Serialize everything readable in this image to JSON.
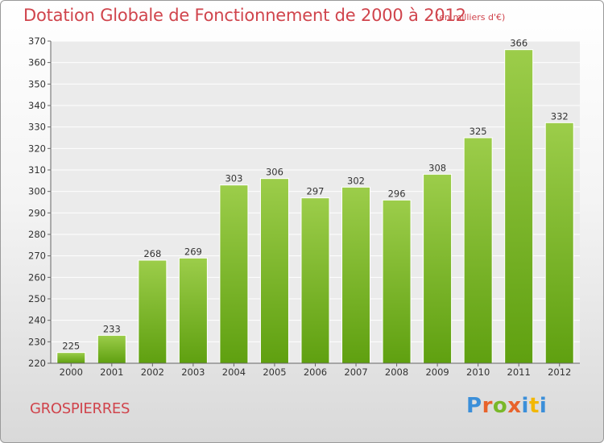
{
  "header": {
    "title": "Dotation Globale de Fonctionnement de 2000 à 2012",
    "unit": "(en milliers d'€)"
  },
  "footer": {
    "commune": "GROSPIERRES",
    "logo": "Proxiti"
  },
  "colors": {
    "accent": "#d0444c",
    "bar_top": "#9ccd4a",
    "bar_bottom": "#5fa010",
    "logo_letters": [
      "#3b8fd9",
      "#e8632c",
      "#79b829",
      "#e8632c",
      "#3b8fd9",
      "#f2b705",
      "#3b8fd9"
    ]
  },
  "chart_data": {
    "type": "bar",
    "categories": [
      "2000",
      "2001",
      "2002",
      "2003",
      "2004",
      "2005",
      "2006",
      "2007",
      "2008",
      "2009",
      "2010",
      "2011",
      "2012"
    ],
    "values": [
      225,
      233,
      268,
      269,
      303,
      306,
      297,
      302,
      296,
      308,
      325,
      366,
      332
    ],
    "title": "Dotation Globale de Fonctionnement de 2000 à 2012",
    "ylim": [
      220,
      370
    ],
    "yticks": [
      220,
      230,
      240,
      250,
      260,
      270,
      280,
      290,
      300,
      310,
      320,
      330,
      340,
      350,
      360,
      370
    ],
    "grid": true,
    "legend": "none"
  }
}
